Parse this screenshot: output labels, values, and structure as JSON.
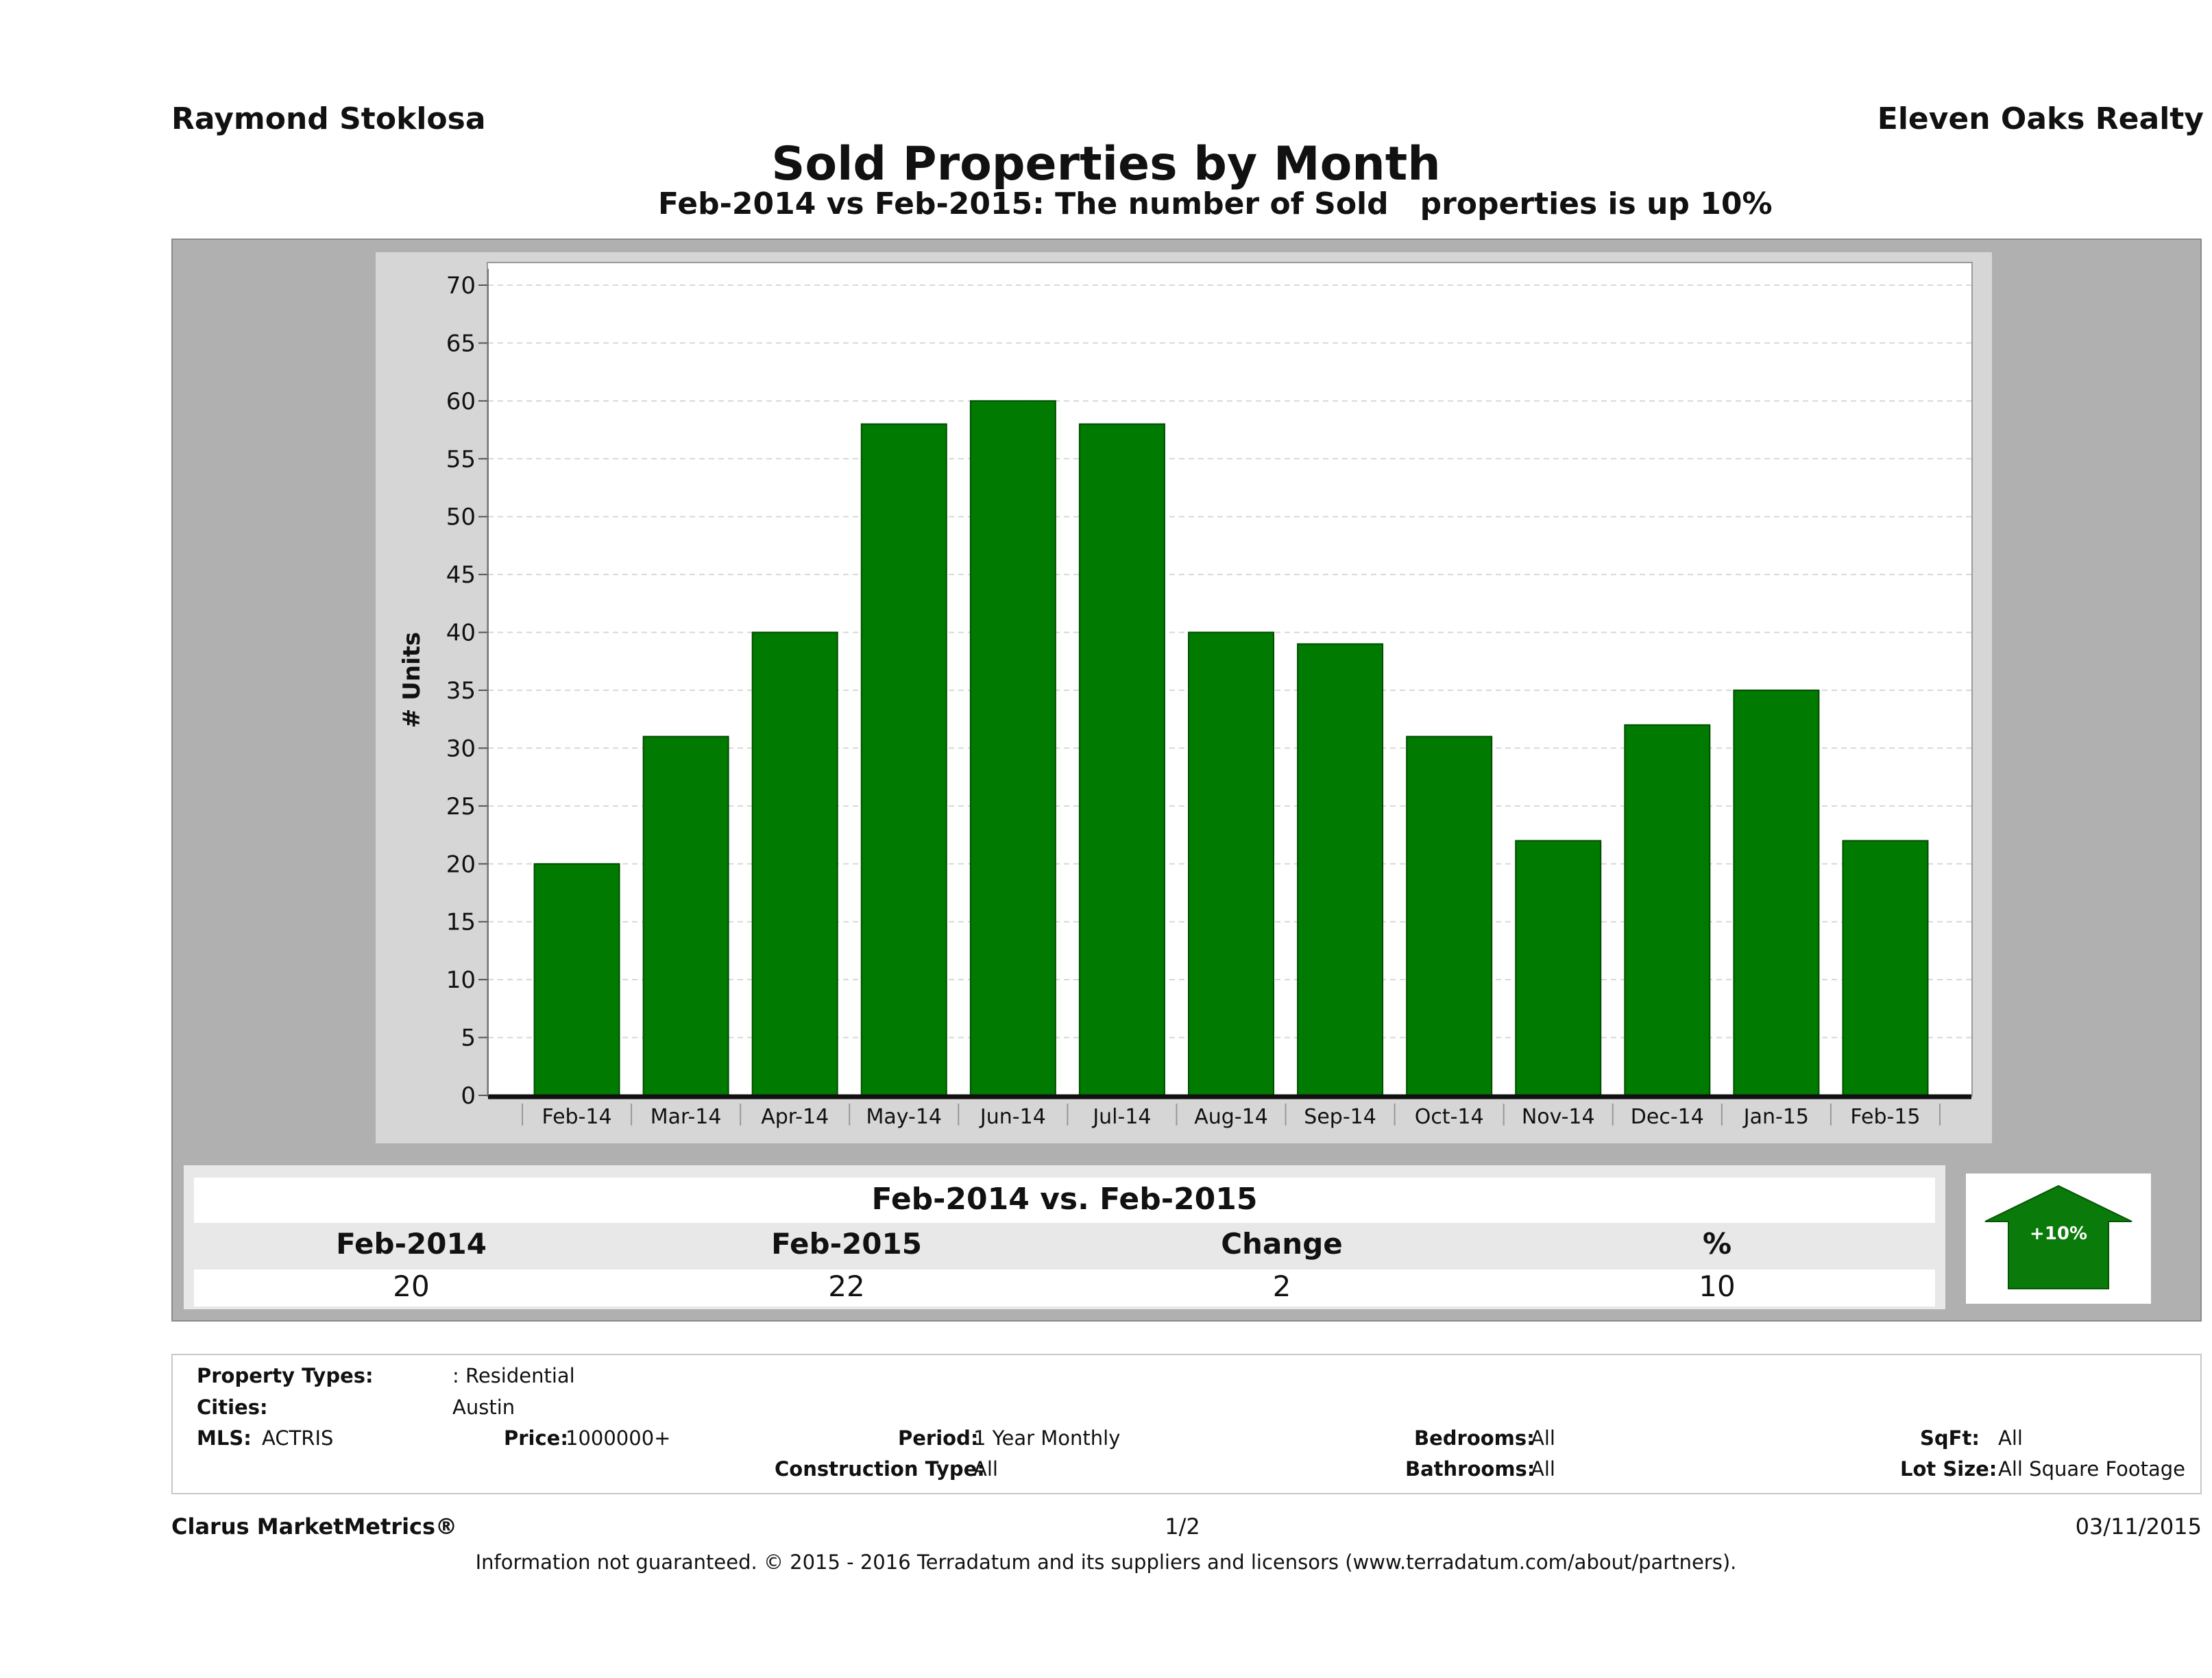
{
  "header": {
    "agent_name": "Raymond Stoklosa",
    "brokerage": "Eleven Oaks Realty",
    "title": "Sold Properties by Month",
    "subtitle": "Feb-2014 vs Feb-2015: The number of Sold   properties is up 10%"
  },
  "colors": {
    "bar_fill": "#007a00",
    "bar_stroke": "#004d00",
    "outer_panel": "#b0b0b0",
    "plot_panel": "#d6d6d6",
    "arrow_fill": "#0a7a0a"
  },
  "chart_data": {
    "type": "bar",
    "title": "Sold Properties by Month",
    "xlabel": "",
    "ylabel": "# Units",
    "ylim": [
      0,
      70
    ],
    "yticks": [
      0,
      5,
      10,
      15,
      20,
      25,
      30,
      35,
      40,
      45,
      50,
      55,
      60,
      65,
      70
    ],
    "grid": true,
    "categories": [
      "Feb-14",
      "Mar-14",
      "Apr-14",
      "May-14",
      "Jun-14",
      "Jul-14",
      "Aug-14",
      "Sep-14",
      "Oct-14",
      "Nov-14",
      "Dec-14",
      "Jan-15",
      "Feb-15"
    ],
    "values": [
      20,
      31,
      40,
      58,
      60,
      58,
      40,
      39,
      31,
      22,
      32,
      35,
      22
    ]
  },
  "summary": {
    "title": "Feb-2014 vs. Feb-2015",
    "headers": [
      "Feb-2014",
      "Feb-2015",
      "Change",
      "%"
    ],
    "values": [
      "20",
      "22",
      "2",
      "10"
    ],
    "badge": "+10%",
    "badge_icon": "up-arrow-icon"
  },
  "filters": {
    "property_types_label": "Property Types:",
    "property_types_value": ": Residential",
    "cities_label": "Cities:",
    "cities_value": "Austin",
    "mls_label": "MLS:",
    "mls_value": "ACTRIS",
    "price_label": "Price:",
    "price_value": "1000000+",
    "period_label": "Period:",
    "period_value": "1 Year Monthly",
    "construction_label": "Construction Type:",
    "construction_value": "All",
    "bedrooms_label": "Bedrooms:",
    "bedrooms_value": "All",
    "bathrooms_label": "Bathrooms:",
    "bathrooms_value": "All",
    "sqft_label": "SqFt:",
    "sqft_value": "All",
    "lotsize_label": "Lot Size:",
    "lotsize_value": "All Square Footage"
  },
  "footer": {
    "brand": "Clarus MarketMetrics®",
    "page": "1/2",
    "date": "03/11/2015",
    "disclaimer": "Information not guaranteed. © 2015 - 2016 Terradatum and its suppliers and licensors (www.terradatum.com/about/partners)."
  }
}
